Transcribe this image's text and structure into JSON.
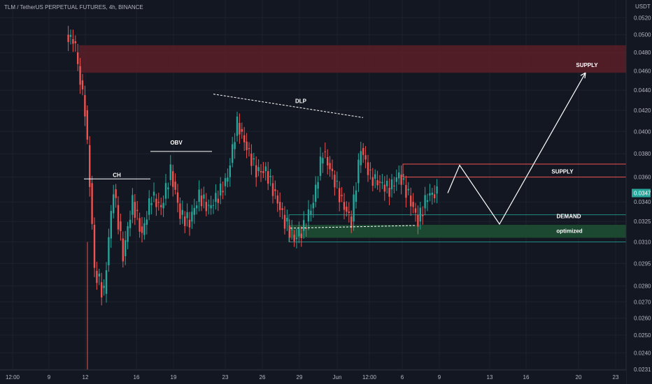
{
  "header": {
    "symbol_title": "TLM / TetherUS PERPETUAL FUTURES, 4h, BINANCE",
    "currency": "USDT"
  },
  "colors": {
    "up": "#26a69a",
    "down": "#ef5350",
    "bg": "#131722",
    "grid": "#1e222d",
    "supply_zone": "#5c1f28",
    "demand_zone": "#1e4d32",
    "price_tag": "#26a69a"
  },
  "chart_data": {
    "type": "candlestick",
    "y_scale": "log",
    "ylim": [
      0.0222,
      0.0535
    ],
    "y_ticks": [
      "0.0520",
      "0.0500",
      "0.0480",
      "0.0460",
      "0.0440",
      "0.0420",
      "0.0400",
      "0.0380",
      "0.0360",
      "0.0340",
      "0.0325",
      "0.0310",
      "0.0295",
      "0.0280",
      "0.0270",
      "0.0260",
      "0.0250",
      "0.0240",
      "0.0231",
      "0.0222"
    ],
    "x_ticks": [
      "12:00",
      "9",
      "12",
      "16",
      "19",
      "23",
      "26",
      "29",
      "Jun",
      "12:00",
      "6",
      "9",
      "13",
      "16",
      "20",
      "23"
    ],
    "last_price": "0.0347",
    "annotations": {
      "ch": "CH",
      "obv": "OBV",
      "dlp": "DLP",
      "supply_upper": "SUPPLY",
      "supply_lower": "SUPPLY",
      "demand": "DEMAND",
      "optimized": "optimized"
    },
    "anchors": [
      [
        0.056,
        0.056
      ],
      [
        0.05,
        0.049
      ],
      [
        0.048,
        0.042
      ],
      [
        0.042,
        0.029
      ],
      [
        0.029,
        0.0275
      ],
      [
        0.0275,
        0.035
      ],
      [
        0.035,
        0.03
      ],
      [
        0.03,
        0.034
      ],
      [
        0.034,
        0.0315
      ],
      [
        0.0315,
        0.0345
      ],
      [
        0.0345,
        0.0335
      ],
      [
        0.0335,
        0.0365
      ],
      [
        0.0365,
        0.033
      ],
      [
        0.033,
        0.0325
      ],
      [
        0.0325,
        0.0345
      ],
      [
        0.0345,
        0.0335
      ],
      [
        0.0335,
        0.0345
      ],
      [
        0.0345,
        0.036
      ],
      [
        0.036,
        0.0408
      ],
      [
        0.0408,
        0.0385
      ],
      [
        0.0385,
        0.0365
      ],
      [
        0.0365,
        0.0365
      ],
      [
        0.0365,
        0.0345
      ],
      [
        0.0345,
        0.0325
      ],
      [
        0.0325,
        0.0312
      ],
      [
        0.0312,
        0.032
      ],
      [
        0.032,
        0.034
      ],
      [
        0.034,
        0.0382
      ],
      [
        0.0382,
        0.0362
      ],
      [
        0.0362,
        0.034
      ],
      [
        0.034,
        0.0325
      ],
      [
        0.0325,
        0.0385
      ],
      [
        0.0385,
        0.036
      ],
      [
        0.036,
        0.0355
      ],
      [
        0.0355,
        0.035
      ],
      [
        0.035,
        0.0362
      ],
      [
        0.0362,
        0.0345
      ],
      [
        0.0345,
        0.0325
      ],
      [
        0.0325,
        0.0345
      ],
      [
        0.0345,
        0.0347
      ]
    ]
  }
}
